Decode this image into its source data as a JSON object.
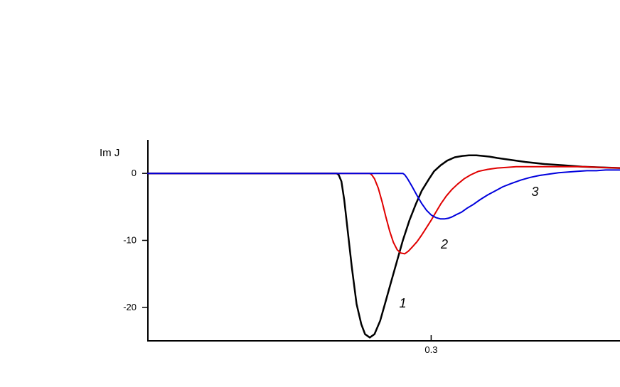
{
  "chart_data": {
    "type": "line",
    "title": "",
    "xlabel": "",
    "ylabel": "Im J",
    "xlim": [
      0,
      0.5
    ],
    "ylim": [
      -25,
      5
    ],
    "x_ticks": [
      {
        "value": 0.3,
        "label": "0.3"
      }
    ],
    "y_ticks": [
      {
        "value": 0,
        "label": "0"
      },
      {
        "value": -10,
        "label": "-10"
      },
      {
        "value": -20,
        "label": "-20"
      }
    ],
    "grid": false,
    "legend": "none",
    "series": [
      {
        "label": "1",
        "color": "#000000",
        "x": [
          0,
          0.15,
          0.2,
          0.202,
          0.205,
          0.208,
          0.212,
          0.216,
          0.221,
          0.226,
          0.23,
          0.235,
          0.24,
          0.246,
          0.252,
          0.258,
          0.264,
          0.27,
          0.277,
          0.284,
          0.29,
          0.297,
          0.303,
          0.31,
          0.317,
          0.325,
          0.333,
          0.34,
          0.348,
          0.355,
          0.362,
          0.37,
          0.38,
          0.39,
          0.4,
          0.42,
          0.44,
          0.46,
          0.48,
          0.5
        ],
        "y": [
          0,
          0,
          0,
          -0.2,
          -1.2,
          -4,
          -9,
          -14,
          -19.5,
          -22.5,
          -24,
          -24.5,
          -24,
          -22,
          -19,
          -16,
          -13,
          -10,
          -7,
          -4.5,
          -2.6,
          -1,
          0.3,
          1.2,
          1.9,
          2.4,
          2.6,
          2.7,
          2.7,
          2.6,
          2.5,
          2.3,
          2.1,
          1.9,
          1.7,
          1.4,
          1.2,
          1,
          0.9,
          0.8
        ]
      },
      {
        "label": "2",
        "color": "#e00000",
        "x": [
          0,
          0.2,
          0.235,
          0.237,
          0.24,
          0.244,
          0.248,
          0.252,
          0.256,
          0.26,
          0.264,
          0.268,
          0.272,
          0.276,
          0.28,
          0.285,
          0.29,
          0.295,
          0.3,
          0.305,
          0.31,
          0.316,
          0.322,
          0.328,
          0.335,
          0.342,
          0.35,
          0.36,
          0.37,
          0.38,
          0.39,
          0.4,
          0.41,
          0.42,
          0.43,
          0.44,
          0.45,
          0.46,
          0.48,
          0.5
        ],
        "y": [
          0,
          0,
          0,
          -0.2,
          -0.8,
          -2.2,
          -4.2,
          -6.5,
          -8.6,
          -10.3,
          -11.4,
          -11.9,
          -12,
          -11.6,
          -11,
          -10.2,
          -9.2,
          -8.1,
          -7,
          -5.8,
          -4.6,
          -3.4,
          -2.4,
          -1.6,
          -0.8,
          -0.2,
          0.3,
          0.6,
          0.8,
          0.9,
          1,
          1,
          1,
          1,
          1,
          1,
          1,
          1,
          0.9,
          0.8
        ]
      },
      {
        "label": "3",
        "color": "#0000dd",
        "x": [
          0,
          0.2,
          0.26,
          0.27,
          0.272,
          0.275,
          0.28,
          0.285,
          0.29,
          0.295,
          0.3,
          0.305,
          0.31,
          0.314,
          0.318,
          0.322,
          0.326,
          0.332,
          0.338,
          0.345,
          0.352,
          0.36,
          0.368,
          0.376,
          0.385,
          0.395,
          0.405,
          0.415,
          0.425,
          0.435,
          0.445,
          0.455,
          0.465,
          0.475,
          0.485,
          0.492,
          0.5
        ],
        "y": [
          0,
          0,
          0,
          0,
          -0.2,
          -0.8,
          -2,
          -3.3,
          -4.5,
          -5.5,
          -6.2,
          -6.6,
          -6.8,
          -6.8,
          -6.7,
          -6.5,
          -6.2,
          -5.8,
          -5.2,
          -4.6,
          -3.9,
          -3.2,
          -2.6,
          -2,
          -1.5,
          -1,
          -0.6,
          -0.3,
          -0.1,
          0.1,
          0.2,
          0.3,
          0.4,
          0.4,
          0.5,
          0.5,
          0.5
        ]
      }
    ],
    "annotations": [
      {
        "text": "1",
        "x": 0.27,
        "y": -20
      },
      {
        "text": "2",
        "x": 0.314,
        "y": -11.2
      },
      {
        "text": "3",
        "x": 0.41,
        "y": -3.4
      }
    ]
  }
}
